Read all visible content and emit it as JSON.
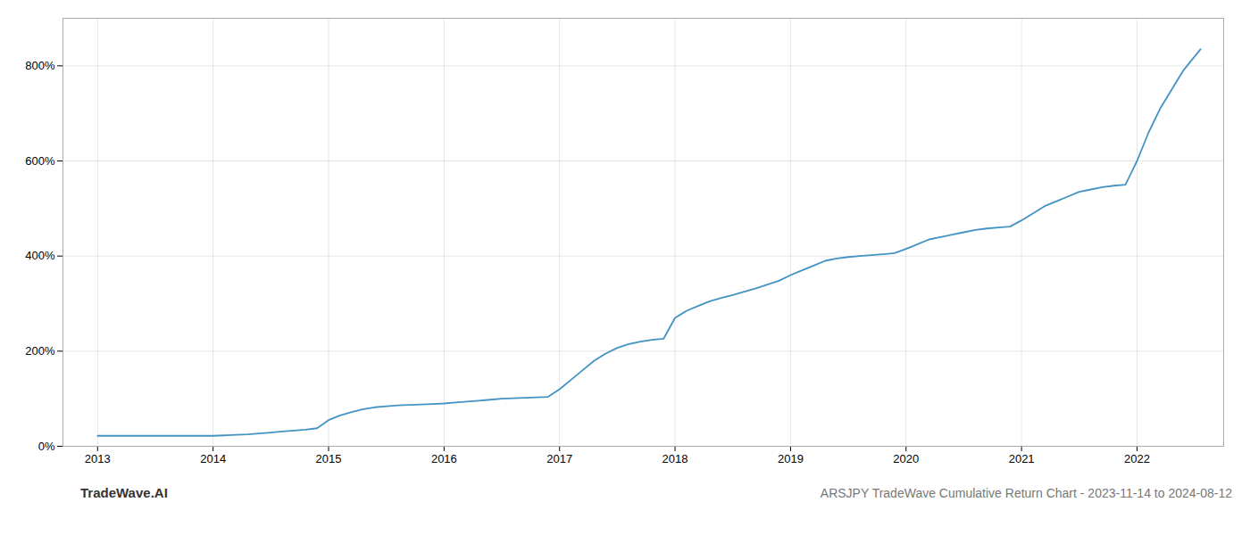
{
  "chart_data": {
    "type": "line",
    "title": "ARSJPY TradeWave Cumulative Return Chart - 2023-11-14 to 2024-08-12",
    "annotations": [
      "TradeWave.AI"
    ],
    "color": "#4393c3",
    "grid": true,
    "x": [
      2013.0,
      2013.1,
      2013.2,
      2013.3,
      2013.4,
      2013.5,
      2013.6,
      2013.7,
      2013.8,
      2013.9,
      2014.0,
      2014.1,
      2014.2,
      2014.3,
      2014.4,
      2014.5,
      2014.6,
      2014.7,
      2014.8,
      2014.9,
      2015.0,
      2015.1,
      2015.2,
      2015.3,
      2015.4,
      2015.5,
      2015.6,
      2015.7,
      2015.8,
      2015.9,
      2016.0,
      2016.1,
      2016.2,
      2016.3,
      2016.4,
      2016.5,
      2016.6,
      2016.7,
      2016.8,
      2016.9,
      2017.0,
      2017.1,
      2017.2,
      2017.3,
      2017.4,
      2017.5,
      2017.6,
      2017.7,
      2017.8,
      2017.9,
      2018.0,
      2018.1,
      2018.2,
      2018.3,
      2018.4,
      2018.5,
      2018.6,
      2018.7,
      2018.8,
      2018.9,
      2019.0,
      2019.1,
      2019.2,
      2019.3,
      2019.4,
      2019.5,
      2019.6,
      2019.7,
      2019.8,
      2019.9,
      2020.0,
      2020.1,
      2020.2,
      2020.3,
      2020.4,
      2020.5,
      2020.6,
      2020.7,
      2020.8,
      2020.9,
      2021.0,
      2021.1,
      2021.2,
      2021.3,
      2021.4,
      2021.5,
      2021.6,
      2021.7,
      2021.8,
      2021.9,
      2022.0,
      2022.1,
      2022.2,
      2022.3,
      2022.4,
      2022.5,
      2022.55
    ],
    "values": [
      22,
      22,
      22,
      22,
      22,
      22,
      22,
      22,
      22,
      22,
      22,
      23,
      24,
      25,
      27,
      29,
      31,
      33,
      35,
      38,
      55,
      65,
      72,
      78,
      82,
      84,
      86,
      87,
      88,
      89,
      90,
      92,
      94,
      96,
      98,
      100,
      101,
      102,
      103,
      104,
      120,
      140,
      160,
      180,
      195,
      207,
      215,
      220,
      224,
      226,
      270,
      285,
      295,
      305,
      312,
      318,
      325,
      332,
      340,
      348,
      360,
      370,
      380,
      390,
      395,
      398,
      400,
      402,
      404,
      406,
      415,
      425,
      435,
      440,
      445,
      450,
      455,
      458,
      460,
      462,
      475,
      490,
      505,
      515,
      525,
      535,
      540,
      545,
      548,
      550,
      600,
      660,
      710,
      750,
      790,
      820,
      835
    ],
    "xlim": [
      2012.7,
      2022.75
    ],
    "xticks": [
      2013,
      2014,
      2015,
      2016,
      2017,
      2018,
      2019,
      2020,
      2021,
      2022
    ],
    "ylim": [
      0,
      900
    ],
    "yticks": [
      {
        "value": 0,
        "label": "0%"
      },
      {
        "value": 200,
        "label": "200%"
      },
      {
        "value": 400,
        "label": "400%"
      },
      {
        "value": 600,
        "label": "600%"
      },
      {
        "value": 800,
        "label": "800%"
      }
    ]
  }
}
